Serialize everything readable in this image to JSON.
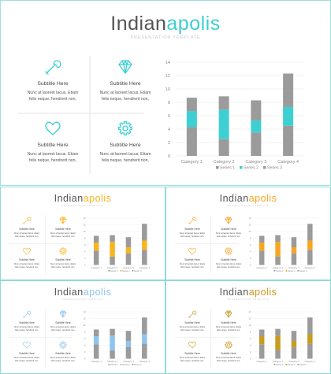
{
  "title_part1": "Indian",
  "title_part2": "apolis",
  "subtitle": "PRESENTATION TEMPLATE",
  "features": [
    {
      "icon": "wrench-icon",
      "label": "Subtitle Here",
      "line1": "Nunc at laoreet lacus. Etiam",
      "line2": "felis neque, hendrerit non,"
    },
    {
      "icon": "diamond-icon",
      "label": "Subtitle Here",
      "line1": "Nunc at laoreet lacus. Etiam",
      "line2": "felis neque, hendrerit non,"
    },
    {
      "icon": "heart-icon",
      "label": "Subtitle Here",
      "line1": "Nunc at laoreet lacus. Etiam",
      "line2": "felis neque, hendrerit non,"
    },
    {
      "icon": "gear-icon",
      "label": "Subtitle Here",
      "line1": "Nunc at laoreet lacus. Etiam",
      "line2": "felis neque, hendrerit non,"
    }
  ],
  "themes": [
    {
      "accent": "#3ecfd2"
    },
    {
      "accent": "#f7b521"
    },
    {
      "accent": "#f7a621"
    },
    {
      "accent": "#8ec4f0"
    },
    {
      "accent": "#c99b1e"
    }
  ],
  "chart_data": {
    "type": "bar",
    "stacked": true,
    "categories": [
      "Category 1",
      "Category 2",
      "Category 3",
      "Category 4"
    ],
    "series": [
      {
        "name": "Series 1",
        "values": [
          4.3,
          2.5,
          3.5,
          4.5
        ]
      },
      {
        "name": "Series 2",
        "values": [
          2.4,
          4.4,
          1.8,
          2.8
        ]
      },
      {
        "name": "Series 3",
        "values": [
          2.0,
          2.0,
          3.0,
          5.0
        ]
      }
    ],
    "yticks": [
      "0",
      "2",
      "4",
      "6",
      "8",
      "10",
      "12",
      "14"
    ],
    "ylim": [
      0,
      14
    ],
    "legend": "bottom",
    "grid": true
  }
}
